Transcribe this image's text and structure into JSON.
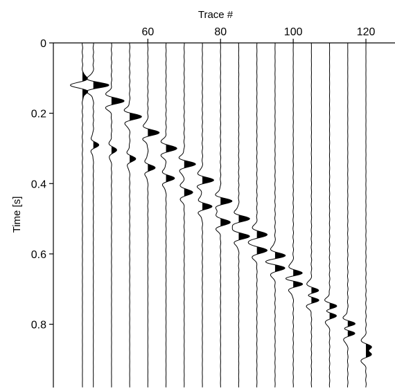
{
  "chart_data": {
    "type": "line",
    "subtype": "seismic-wiggle-traces",
    "title": "",
    "xlabel": "Trace #",
    "ylabel": "Time [s]",
    "x_axis_position": "top",
    "y_axis_inverted": true,
    "xlim": [
      34,
      128
    ],
    "ylim": [
      0,
      0.98
    ],
    "xticks": [
      {
        "value": 60,
        "label": "60"
      },
      {
        "value": 80,
        "label": "80"
      },
      {
        "value": 100,
        "label": "100"
      },
      {
        "value": 120,
        "label": "120"
      }
    ],
    "yticks": [
      {
        "value": 0,
        "label": "0"
      },
      {
        "value": 0.2,
        "label": "0.2"
      },
      {
        "value": 0.4,
        "label": "0.4"
      },
      {
        "value": 0.6,
        "label": "0.6"
      },
      {
        "value": 0.8,
        "label": "0.8"
      }
    ],
    "grid": false,
    "fill_positive": true,
    "trace_color": "#000000",
    "traces": [
      {
        "trace": 42,
        "events": [
          {
            "time": 0.12,
            "amp": -1.0
          }
        ]
      },
      {
        "trace": 45,
        "events": [
          {
            "time": 0.12,
            "amp": 1.3
          },
          {
            "time": 0.29,
            "amp": 0.45
          }
        ]
      },
      {
        "trace": 50,
        "events": [
          {
            "time": 0.165,
            "amp": 1.1
          },
          {
            "time": 0.305,
            "amp": 0.45
          }
        ]
      },
      {
        "trace": 55,
        "events": [
          {
            "time": 0.21,
            "amp": 1.0
          },
          {
            "time": 0.33,
            "amp": 0.5
          }
        ]
      },
      {
        "trace": 60,
        "events": [
          {
            "time": 0.255,
            "amp": 0.95
          },
          {
            "time": 0.355,
            "amp": 0.6
          }
        ]
      },
      {
        "trace": 65,
        "events": [
          {
            "time": 0.3,
            "amp": 0.95
          },
          {
            "time": 0.385,
            "amp": 0.7
          }
        ]
      },
      {
        "trace": 70,
        "events": [
          {
            "time": 0.345,
            "amp": 0.95
          },
          {
            "time": 0.425,
            "amp": 0.75
          }
        ]
      },
      {
        "trace": 75,
        "events": [
          {
            "time": 0.39,
            "amp": 0.95
          },
          {
            "time": 0.465,
            "amp": 0.8
          }
        ]
      },
      {
        "trace": 80,
        "events": [
          {
            "time": 0.45,
            "amp": 0.95
          },
          {
            "time": 0.51,
            "amp": 0.85
          }
        ]
      },
      {
        "trace": 85,
        "events": [
          {
            "time": 0.5,
            "amp": 0.9
          },
          {
            "time": 0.55,
            "amp": 0.9
          }
        ]
      },
      {
        "trace": 90,
        "events": [
          {
            "time": 0.545,
            "amp": 0.9
          },
          {
            "time": 0.59,
            "amp": 0.9
          }
        ]
      },
      {
        "trace": 95,
        "events": [
          {
            "time": 0.605,
            "amp": 0.9
          },
          {
            "time": 0.64,
            "amp": 0.9
          }
        ]
      },
      {
        "trace": 100,
        "events": [
          {
            "time": 0.655,
            "amp": 0.9
          },
          {
            "time": 0.685,
            "amp": 0.9
          }
        ]
      },
      {
        "trace": 105,
        "events": [
          {
            "time": 0.705,
            "amp": 0.9
          },
          {
            "time": 0.73,
            "amp": 0.9
          }
        ]
      },
      {
        "trace": 110,
        "events": [
          {
            "time": 0.75,
            "amp": 0.85
          },
          {
            "time": 0.775,
            "amp": 0.85
          }
        ]
      },
      {
        "trace": 115,
        "events": [
          {
            "time": 0.8,
            "amp": 0.85
          },
          {
            "time": 0.825,
            "amp": 0.85
          }
        ]
      },
      {
        "trace": 120,
        "events": [
          {
            "time": 0.865,
            "amp": 0.9
          },
          {
            "time": 0.885,
            "amp": 0.9
          }
        ]
      }
    ]
  }
}
